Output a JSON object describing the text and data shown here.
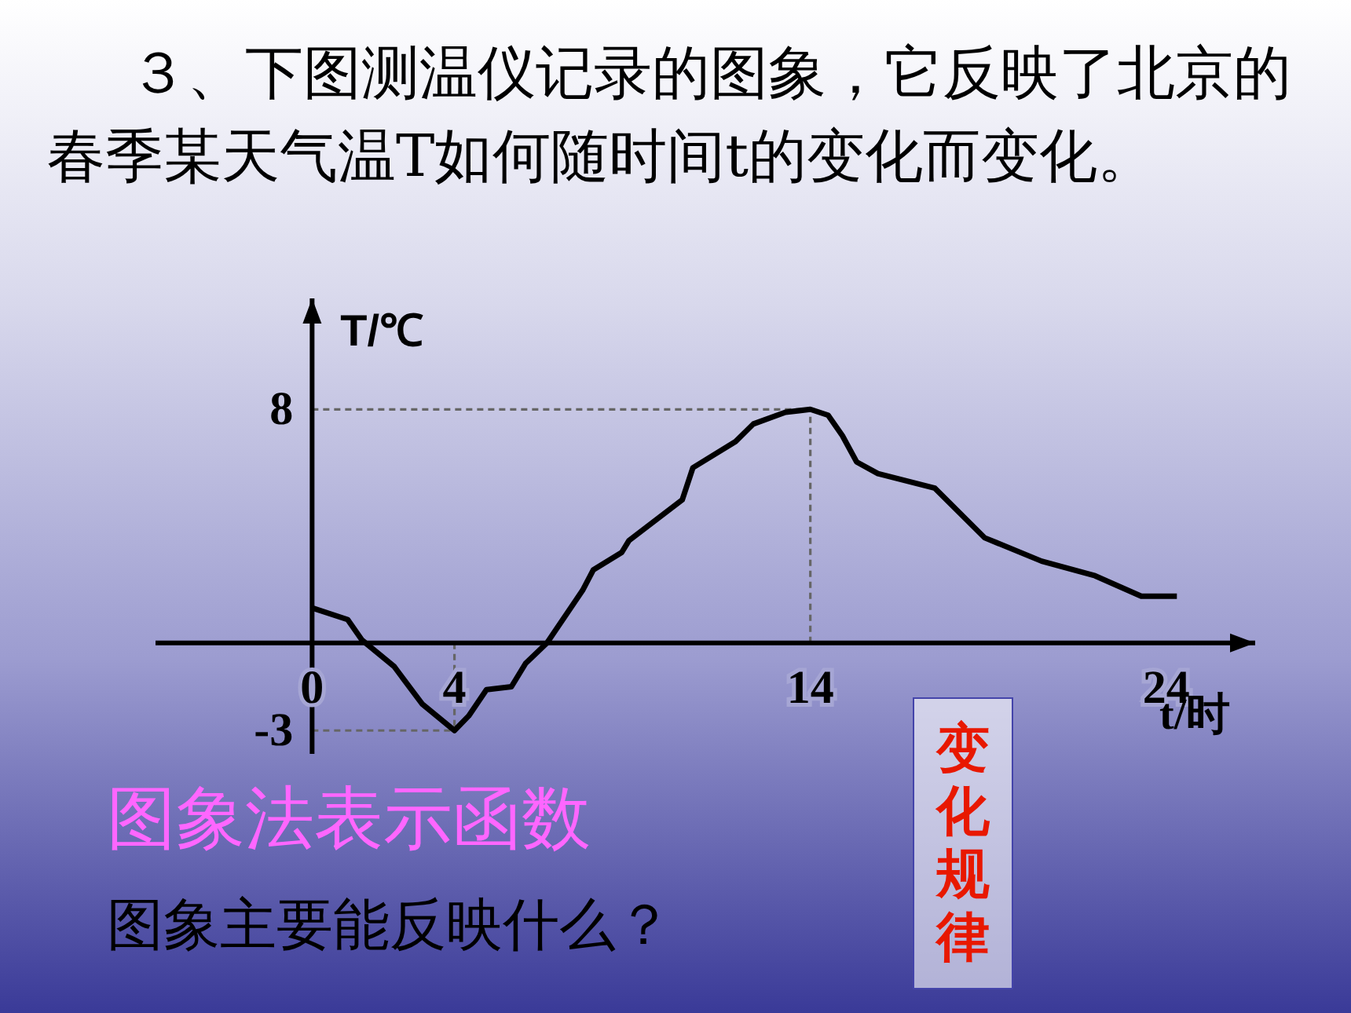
{
  "chart_data": {
    "type": "line",
    "title": "３、下图测温仪记录的图象，它反映了北京的春季某天气温T如何随时间t的变化而变化。",
    "xlabel": "t/时",
    "ylabel": "T/℃",
    "series": [
      {
        "color": "#000000",
        "x": [
          0,
          1.0,
          1.4,
          2.3,
          3.1,
          4,
          4.4,
          4.9,
          5.6,
          6.0,
          6.6,
          7.6,
          7.9,
          8.7,
          8.9,
          10.4,
          10.7,
          11.9,
          12.4,
          13.3,
          14,
          14.5,
          14.9,
          15.3,
          15.9,
          17.5,
          18.9,
          20.5,
          22.0,
          23.3,
          24.3
        ],
        "values": [
          1.2,
          0.8,
          0.1,
          -0.8,
          -2.1,
          -3,
          -2.5,
          -1.6,
          -1.5,
          -0.7,
          0,
          1.8,
          2.5,
          3.1,
          3.5,
          4.9,
          6.0,
          6.9,
          7.5,
          7.9,
          8,
          7.8,
          7.1,
          6.2,
          5.8,
          5.3,
          3.6,
          2.8,
          2.3,
          1.6,
          1.6
        ]
      }
    ],
    "xlim": [
      -4.4,
      26.5
    ],
    "xticks": [
      0,
      4,
      14,
      24
    ],
    "ylim": [
      -3.8,
      11.8
    ],
    "yticks": [
      -3,
      8
    ],
    "ref_lines": [
      {
        "axis": "y",
        "value": 8,
        "label": null,
        "color": "#666666",
        "line_style": "dashed"
      },
      {
        "axis": "y",
        "value": -3,
        "label": null,
        "color": "#666666",
        "line_style": "dashed"
      },
      {
        "axis": "x",
        "value": 4,
        "label": null,
        "color": "#666666",
        "line_style": "dashed"
      },
      {
        "axis": "x",
        "value": 14,
        "label": null,
        "color": "#666666",
        "line_style": "dashed"
      }
    ],
    "annotations": [
      "图象法表示函数",
      "图象主要能反映什么？",
      "变化规律"
    ],
    "grid": false,
    "marker": "none",
    "line_style": "solid"
  }
}
